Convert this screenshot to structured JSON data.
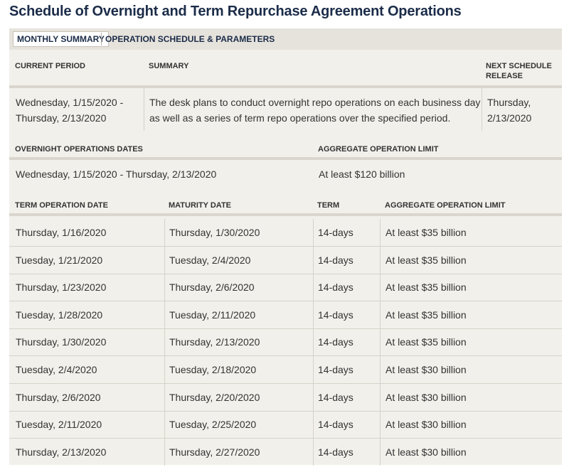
{
  "page_title": "Schedule of Overnight and Term Repurchase Agreement Operations",
  "tabs": [
    {
      "label": "MONTHLY SUMMARY",
      "active": true
    },
    {
      "label": "OPERATION SCHEDULE & PARAMETERS",
      "active": false
    }
  ],
  "summary": {
    "headers": {
      "current_period": "CURRENT PERIOD",
      "summary": "SUMMARY",
      "next_release_line1": "NEXT SCHEDULE",
      "next_release_line2": "RELEASE"
    },
    "current_period_line1": "Wednesday, 1/15/2020 -",
    "current_period_line2": "Thursday, 2/13/2020",
    "summary_line1": "The desk plans to conduct overnight repo operations on each business day",
    "summary_line2": "as well as a series of term repo operations over the specified period.",
    "next_release_line1": "Thursday,",
    "next_release_line2": "2/13/2020"
  },
  "overnight": {
    "headers": {
      "dates": "OVERNIGHT OPERATIONS DATES",
      "limit": "AGGREGATE OPERATION LIMIT"
    },
    "dates": "Wednesday, 1/15/2020 - Thursday, 2/13/2020",
    "limit": "At least $120 billion"
  },
  "term": {
    "headers": {
      "operation_date": "TERM OPERATION DATE",
      "maturity_date": "MATURITY DATE",
      "term": "TERM",
      "limit": "AGGREGATE OPERATION LIMIT"
    },
    "rows": [
      {
        "operation_date": "Thursday, 1/16/2020",
        "maturity_date": "Thursday, 1/30/2020",
        "term": "14-days",
        "limit": "At least $35 billion"
      },
      {
        "operation_date": "Tuesday, 1/21/2020",
        "maturity_date": "Tuesday, 2/4/2020",
        "term": "14-days",
        "limit": "At least $35 billion"
      },
      {
        "operation_date": "Thursday, 1/23/2020",
        "maturity_date": "Thursday, 2/6/2020",
        "term": "14-days",
        "limit": "At least $35 billion"
      },
      {
        "operation_date": "Tuesday, 1/28/2020",
        "maturity_date": "Tuesday, 2/11/2020",
        "term": "14-days",
        "limit": "At least $35 billion"
      },
      {
        "operation_date": "Thursday, 1/30/2020",
        "maturity_date": "Thursday, 2/13/2020",
        "term": "14-days",
        "limit": "At least $35 billion"
      },
      {
        "operation_date": "Tuesday, 2/4/2020",
        "maturity_date": "Tuesday, 2/18/2020",
        "term": "14-days",
        "limit": "At least $30 billion"
      },
      {
        "operation_date": "Thursday, 2/6/2020",
        "maturity_date": "Thursday, 2/20/2020",
        "term": "14-days",
        "limit": "At least $30 billion"
      },
      {
        "operation_date": "Tuesday, 2/11/2020",
        "maturity_date": "Tuesday, 2/25/2020",
        "term": "14-days",
        "limit": "At least $30 billion"
      },
      {
        "operation_date": "Thursday, 2/13/2020",
        "maturity_date": "Thursday, 2/27/2020",
        "term": "14-days",
        "limit": "At least $30 billion"
      }
    ]
  },
  "colors": {
    "title": "#1b2c49",
    "panel_bg": "#f2f0eb",
    "tabbar_bg": "#e6e3dc",
    "band": "#dad6cd"
  }
}
